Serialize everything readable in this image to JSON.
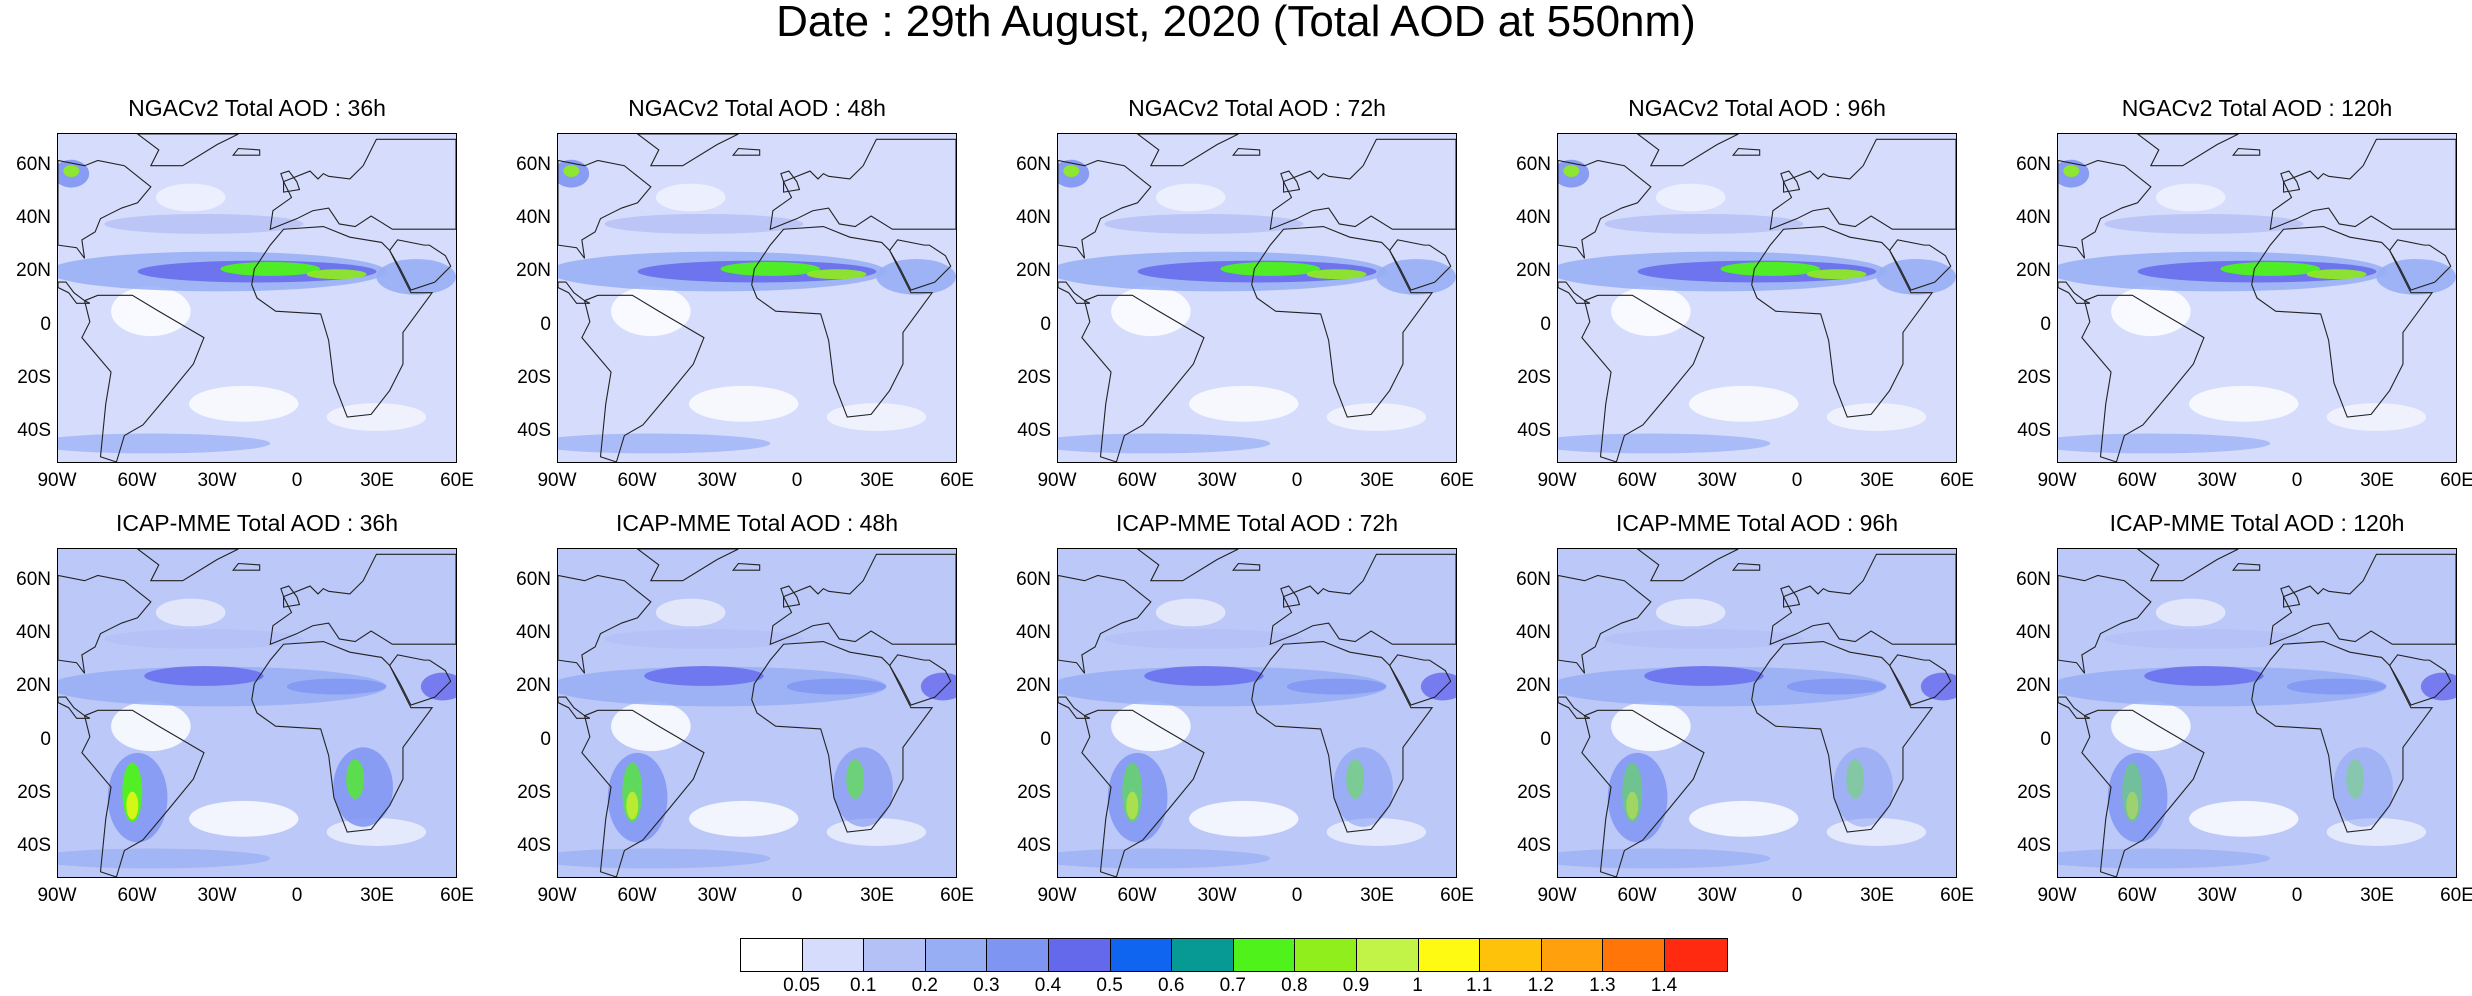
{
  "title": "Date : 29th August, 2020 (Total AOD at 550nm)",
  "panels": {
    "top": [
      {
        "title": "NGACv2 Total AOD : 36h",
        "lead": "36h"
      },
      {
        "title": "NGACv2 Total AOD : 48h",
        "lead": "48h"
      },
      {
        "title": "NGACv2 Total AOD : 72h",
        "lead": "72h"
      },
      {
        "title": "NGACv2 Total AOD : 96h",
        "lead": "96h"
      },
      {
        "title": "NGACv2 Total AOD : 120h",
        "lead": "120h"
      }
    ],
    "bottom": [
      {
        "title": "ICAP-MME Total AOD : 36h",
        "lead": "36h"
      },
      {
        "title": "ICAP-MME Total AOD : 48h",
        "lead": "48h"
      },
      {
        "title": "ICAP-MME Total AOD : 72h",
        "lead": "72h"
      },
      {
        "title": "ICAP-MME Total AOD : 96h",
        "lead": "96h"
      },
      {
        "title": "ICAP-MME Total AOD : 120h",
        "lead": "120h"
      }
    ]
  },
  "lat_ticks": [
    "60N",
    "40N",
    "20N",
    "0",
    "20S",
    "40S"
  ],
  "lon_ticks": [
    "90W",
    "60W",
    "30W",
    "0",
    "30E",
    "60E"
  ],
  "colorbar": {
    "levels": [
      "0.05",
      "0.1",
      "0.2",
      "0.3",
      "0.4",
      "0.5",
      "0.6",
      "0.7",
      "0.8",
      "0.9",
      "1",
      "1.1",
      "1.2",
      "1.3",
      "1.4"
    ],
    "colors": [
      "#ffffff",
      "#d6dcfb",
      "#b4c1f6",
      "#97aef5",
      "#7f95f2",
      "#6469ec",
      "#0f64f0",
      "#079a95",
      "#4ff21a",
      "#90ee1c",
      "#c2f447",
      "#fffa12",
      "#ffc20a",
      "#ffa00c",
      "#ff7508",
      "#ff2a10"
    ]
  },
  "map_extent": {
    "lon": [
      -90,
      60
    ],
    "lat": [
      -52,
      72
    ]
  }
}
